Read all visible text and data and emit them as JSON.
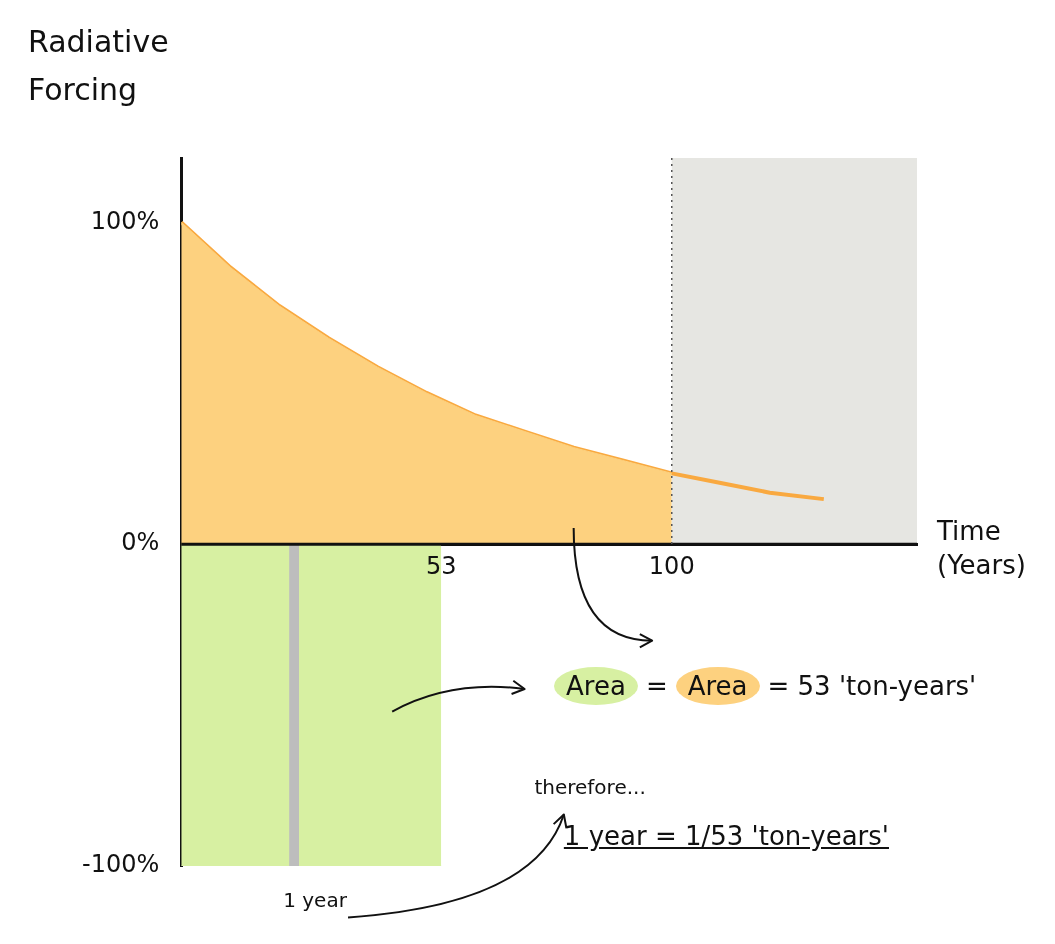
{
  "chart_data": {
    "type": "area",
    "ylabel": "Radiative Forcing",
    "xlabel": "Time (Years)",
    "annotations": [
      "Area",
      "=",
      "Area",
      "= 53 'ton-years'",
      "therefore...",
      "1 year = 1/53 'ton-years'"
    ],
    "xlim": [
      0,
      150
    ],
    "ylim": [
      -100,
      120
    ],
    "xticks": [
      53,
      100
    ],
    "yticks": [
      {
        "value": -100,
        "label": "-100%"
      },
      {
        "value": 0,
        "label": "0%"
      },
      {
        "value": 100,
        "label": "100%"
      }
    ],
    "series": [
      {
        "type": "area",
        "color": "#d7f0a2",
        "x": [
          0,
          53
        ],
        "values": [
          -100,
          -100
        ]
      },
      {
        "type": "area",
        "color": "#fdd17f",
        "x": [
          0,
          10,
          20,
          30,
          40,
          50,
          60,
          70,
          80,
          90,
          100
        ],
        "values": [
          100,
          86,
          74,
          64,
          55,
          47,
          40,
          35,
          30,
          26,
          22
        ]
      },
      {
        "type": "line",
        "color": "#f9a940",
        "x": [
          0,
          10,
          20,
          30,
          40,
          50,
          60,
          70,
          80,
          90,
          100,
          110,
          120,
          131
        ],
        "values": [
          100,
          86,
          74,
          64,
          55,
          47,
          40,
          35,
          30,
          26,
          22,
          19,
          16,
          14
        ]
      }
    ],
    "bands": [
      {
        "axis": "x",
        "from": 100,
        "to": 150,
        "color": "#e6e6e2"
      },
      {
        "axis": "x",
        "from": 22,
        "to": 24,
        "label": "1 year",
        "color": "#bdbdbd"
      }
    ],
    "ref_lines": [
      {
        "axis": "x",
        "value": 100,
        "line_style": "dotted",
        "color": "#555555"
      }
    ],
    "grid": false,
    "legend": false
  }
}
